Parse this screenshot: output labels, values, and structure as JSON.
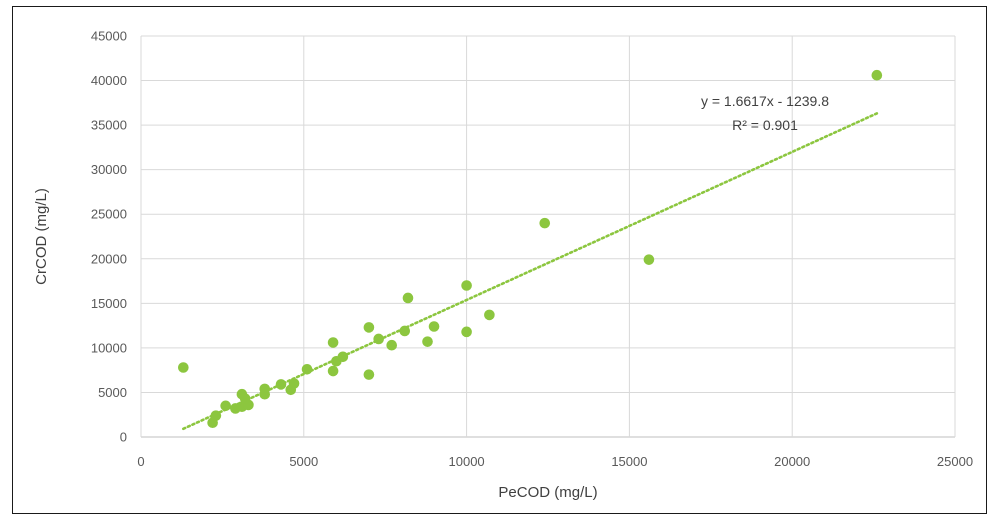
{
  "chart_data": {
    "type": "scatter",
    "xlabel": "PeCOD (mg/L)",
    "ylabel": "CrCOD (mg/L)",
    "xlim": [
      0,
      25000
    ],
    "ylim": [
      0,
      45000
    ],
    "xticks": [
      "0",
      "5000",
      "10000",
      "15000",
      "20000",
      "25000"
    ],
    "yticks": [
      "0",
      "5000",
      "10000",
      "15000",
      "20000",
      "25000",
      "30000",
      "35000",
      "40000",
      "45000"
    ],
    "grid": true,
    "legend": "none",
    "marker_color": "#8cc63f",
    "trendline_color": "#8cc63f",
    "series": [
      {
        "points": [
          [
            1300,
            7800
          ],
          [
            2200,
            1600
          ],
          [
            2300,
            2400
          ],
          [
            2600,
            3500
          ],
          [
            2900,
            3200
          ],
          [
            3100,
            3400
          ],
          [
            3100,
            4800
          ],
          [
            3300,
            3600
          ],
          [
            3200,
            4300
          ],
          [
            3800,
            4800
          ],
          [
            3800,
            5400
          ],
          [
            4300,
            5900
          ],
          [
            4600,
            5300
          ],
          [
            4700,
            6000
          ],
          [
            5100,
            7600
          ],
          [
            5900,
            10600
          ],
          [
            5900,
            7400
          ],
          [
            6000,
            8500
          ],
          [
            6200,
            9000
          ],
          [
            7000,
            12300
          ],
          [
            7000,
            7000
          ],
          [
            7300,
            11000
          ],
          [
            7700,
            10300
          ],
          [
            8100,
            11900
          ],
          [
            8200,
            15600
          ],
          [
            8800,
            10700
          ],
          [
            9000,
            12400
          ],
          [
            10000,
            17000
          ],
          [
            10000,
            11800
          ],
          [
            10700,
            13700
          ],
          [
            12400,
            24000
          ],
          [
            15600,
            19900
          ],
          [
            22600,
            40600
          ]
        ]
      }
    ],
    "trendline": {
      "type": "linear",
      "slope": 1.6617,
      "intercept": -1239.8,
      "x_range": [
        1300,
        22600
      ],
      "equation": "y = 1.6617x - 1239.8",
      "r_squared": "R² = 0.901"
    }
  }
}
